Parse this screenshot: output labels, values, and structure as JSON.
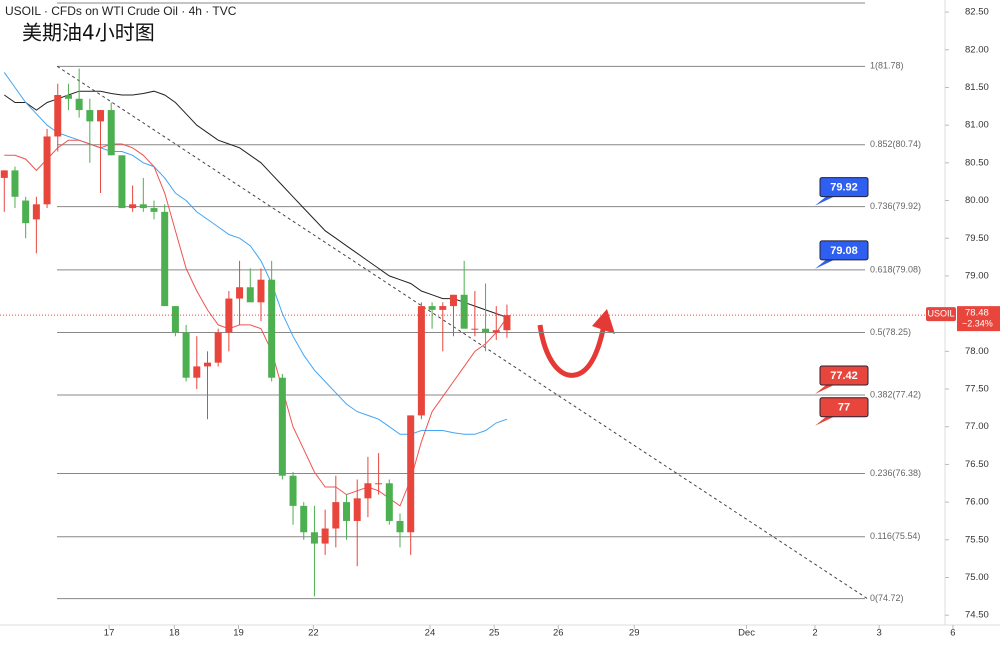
{
  "chart_data": {
    "type": "candlestick",
    "title": "USOIL · CFDs on WTI Crude Oil · 4h · TVC",
    "subtitle": "美期油4小时图",
    "symbol": "USOIL",
    "x": [
      0,
      1,
      2,
      3,
      4,
      5,
      6,
      7,
      8,
      9,
      10,
      11,
      12,
      13,
      14,
      15,
      16,
      17,
      18,
      19,
      20,
      21,
      22,
      23,
      24,
      25,
      26,
      27,
      28,
      29,
      30,
      31,
      32,
      33,
      34,
      35,
      36,
      37,
      38,
      39,
      40,
      41,
      42,
      43,
      44,
      45,
      46,
      47
    ],
    "open": [
      80.3,
      80.4,
      80.0,
      79.75,
      79.95,
      80.85,
      81.4,
      81.35,
      81.2,
      81.05,
      81.2,
      80.6,
      79.9,
      79.95,
      79.9,
      79.85,
      78.6,
      78.25,
      77.65,
      77.8,
      77.85,
      78.25,
      78.7,
      78.85,
      78.65,
      78.95,
      77.65,
      76.35,
      75.95,
      75.6,
      75.45,
      75.65,
      76.0,
      75.75,
      76.05,
      76.25,
      76.25,
      75.75,
      75.6,
      77.15,
      78.6,
      78.55,
      78.6,
      78.75,
      78.3,
      78.3,
      78.25,
      78.28
    ],
    "high": [
      80.4,
      80.45,
      80.05,
      80.05,
      80.95,
      81.55,
      81.55,
      81.75,
      81.35,
      81.2,
      81.3,
      80.6,
      80.2,
      80.3,
      80.0,
      79.95,
      78.6,
      78.35,
      78.2,
      78.0,
      78.3,
      78.8,
      79.2,
      79.1,
      79.1,
      79.2,
      77.7,
      76.4,
      76.0,
      75.95,
      75.9,
      76.35,
      76.1,
      76.3,
      76.6,
      76.65,
      76.3,
      75.85,
      77.15,
      78.65,
      78.65,
      78.65,
      78.75,
      79.2,
      78.8,
      78.9,
      78.6,
      78.62
    ],
    "low": [
      79.85,
      79.9,
      79.5,
      79.3,
      79.9,
      80.65,
      81.2,
      81.1,
      80.5,
      80.1,
      80.6,
      79.9,
      79.85,
      79.85,
      79.75,
      78.6,
      78.2,
      77.6,
      77.5,
      77.1,
      77.8,
      78.0,
      78.35,
      78.7,
      78.4,
      77.6,
      76.3,
      75.7,
      75.5,
      74.75,
      75.3,
      75.4,
      75.5,
      75.15,
      75.8,
      76.1,
      75.7,
      75.4,
      75.3,
      77.1,
      78.3,
      78.0,
      78.2,
      78.35,
      78.2,
      78.0,
      78.15,
      78.18
    ],
    "close": [
      80.4,
      80.05,
      79.7,
      79.95,
      80.85,
      81.4,
      81.35,
      81.2,
      81.05,
      81.2,
      80.6,
      79.9,
      79.95,
      79.9,
      79.85,
      78.6,
      78.25,
      77.65,
      77.8,
      77.85,
      78.25,
      78.7,
      78.85,
      78.65,
      78.95,
      77.65,
      76.35,
      75.95,
      75.6,
      75.45,
      75.65,
      76.0,
      75.75,
      76.05,
      76.25,
      76.25,
      75.75,
      75.6,
      77.15,
      78.6,
      78.55,
      78.6,
      78.75,
      78.3,
      78.3,
      78.25,
      78.28,
      78.48
    ],
    "up_color": "#e8453c",
    "down_color": "#4caf50",
    "lines": [
      {
        "color": "#222222",
        "values": [
          81.4,
          81.3,
          81.3,
          81.2,
          81.3,
          81.35,
          81.4,
          81.45,
          81.45,
          81.45,
          81.42,
          81.4,
          81.4,
          81.42,
          81.45,
          81.4,
          81.3,
          81.15,
          81.0,
          80.9,
          80.8,
          80.75,
          80.7,
          80.6,
          80.5,
          80.35,
          80.2,
          80.05,
          79.9,
          79.75,
          79.6,
          79.5,
          79.4,
          79.3,
          79.2,
          79.1,
          79.0,
          78.95,
          78.9,
          78.8,
          78.75,
          78.7,
          78.7,
          78.65,
          78.6,
          78.55,
          78.5,
          78.45
        ]
      },
      {
        "color": "#42a5f5",
        "values": [
          81.7,
          81.5,
          81.3,
          81.15,
          81.0,
          80.9,
          80.85,
          80.8,
          80.75,
          80.7,
          80.65,
          80.65,
          80.6,
          80.5,
          80.45,
          80.3,
          80.1,
          80.0,
          79.85,
          79.75,
          79.65,
          79.55,
          79.5,
          79.4,
          79.2,
          78.9,
          78.5,
          78.2,
          77.95,
          77.75,
          77.6,
          77.45,
          77.3,
          77.2,
          77.15,
          77.1,
          77.0,
          76.9,
          76.9,
          76.95,
          76.95,
          76.95,
          76.92,
          76.9,
          76.9,
          76.95,
          77.05,
          77.1
        ]
      },
      {
        "color": "#ef5350",
        "values": [
          80.6,
          80.6,
          80.55,
          80.4,
          80.55,
          80.7,
          80.8,
          80.8,
          80.75,
          80.7,
          80.75,
          80.75,
          80.7,
          80.6,
          80.45,
          80.1,
          79.6,
          79.1,
          78.8,
          78.55,
          78.35,
          78.3,
          78.35,
          78.35,
          78.3,
          78.0,
          77.5,
          77.0,
          76.7,
          76.4,
          76.2,
          76.2,
          76.1,
          76.15,
          76.2,
          76.15,
          76.05,
          75.95,
          76.3,
          76.8,
          77.2,
          77.4,
          77.6,
          77.8,
          78.0,
          78.1,
          78.25,
          78.45
        ]
      }
    ],
    "fib_levels": [
      {
        "value": 81.78,
        "label": "1(81.78)"
      },
      {
        "value": 80.74,
        "label": "0.852(80.74)"
      },
      {
        "value": 79.92,
        "label": "0.736(79.92)"
      },
      {
        "value": 79.08,
        "label": "0.618(79.08)"
      },
      {
        "value": 78.25,
        "label": "0.5(78.25)"
      },
      {
        "value": 77.42,
        "label": "0.382(77.42)"
      },
      {
        "value": 76.38,
        "label": "0.236(76.38)"
      },
      {
        "value": 75.54,
        "label": "0.116(75.54)"
      },
      {
        "value": 74.72,
        "label": "0(74.72)"
      }
    ],
    "trendline": {
      "x": [
        4.95,
        80.7
      ],
      "y": [
        81.78,
        74.72
      ]
    },
    "annotations": [
      {
        "value": 79.92,
        "color": "#2f5ff0"
      },
      {
        "value": 79.08,
        "color": "#2f5ff0"
      },
      {
        "value": 77.42,
        "color": "#e8453c"
      },
      {
        "value": 77.0,
        "color": "#e8453c"
      }
    ],
    "last_price": 78.48,
    "change": {
      "value": -2.34,
      "label": "−2.34%"
    },
    "ylim": [
      74.37,
      82.66
    ],
    "yticks": [
      {
        "value": 82.5,
        "label": "82.50"
      },
      {
        "value": 82,
        "label": "82.00"
      },
      {
        "value": 81.5,
        "label": "81.50"
      },
      {
        "value": 81,
        "label": "81.00"
      },
      {
        "value": 80.5,
        "label": "80.50"
      },
      {
        "value": 80,
        "label": "80.00"
      },
      {
        "value": 79.5,
        "label": "79.50"
      },
      {
        "value": 79,
        "label": "79.00"
      },
      {
        "value": 78.5,
        "label": "78.50"
      },
      {
        "value": 78,
        "label": "78.00"
      },
      {
        "value": 77.5,
        "label": "77.50"
      },
      {
        "value": 77,
        "label": "77.00"
      },
      {
        "value": 76.5,
        "label": "76.50"
      },
      {
        "value": 76,
        "label": "76.00"
      },
      {
        "value": 75.5,
        "label": "75.50"
      },
      {
        "value": 75,
        "label": "75.00"
      },
      {
        "value": 74.5,
        "label": "74.50"
      }
    ],
    "xlim": [
      -0.4,
      93.1
    ],
    "xticks": [
      {
        "value": 9.8,
        "label": "17"
      },
      {
        "value": 15.9,
        "label": "18"
      },
      {
        "value": 21.9,
        "label": "19"
      },
      {
        "value": 28.9,
        "label": "22"
      },
      {
        "value": 39.8,
        "label": "24"
      },
      {
        "value": 45.8,
        "label": "25"
      },
      {
        "value": 51.8,
        "label": "26"
      },
      {
        "value": 58.9,
        "label": "29"
      },
      {
        "value": 69.4,
        "label": "Dec"
      },
      {
        "value": 75.8,
        "label": "2"
      },
      {
        "value": 81.8,
        "label": "3"
      },
      {
        "value": 88.7,
        "label": "6"
      }
    ]
  }
}
